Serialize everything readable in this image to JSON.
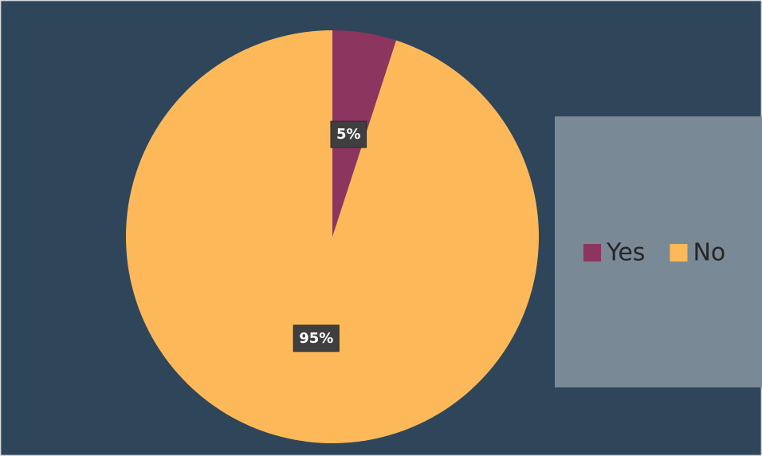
{
  "chart_data": {
    "type": "pie",
    "categories": [
      "Yes",
      "No"
    ],
    "values": [
      5,
      95
    ],
    "value_labels": [
      "5%",
      "95%"
    ],
    "colors": [
      "#8c355f",
      "#fdb959"
    ]
  }
}
